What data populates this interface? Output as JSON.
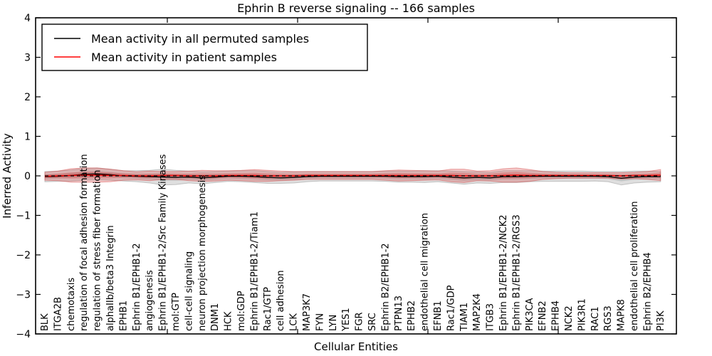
{
  "title": "Ephrin B reverse signaling -- 166 samples",
  "axes": {
    "x_label": "Cellular Entities",
    "y_label": "Inferred Activity",
    "y_tick_values": [
      4,
      3,
      2,
      1,
      0,
      -1,
      -2,
      -3,
      -4
    ],
    "y_tick_labels": [
      "4",
      "3",
      "2",
      "1",
      "0",
      "−1",
      "−2",
      "−3",
      "−4"
    ],
    "ylim": [
      -4,
      4
    ]
  },
  "legend": {
    "position": "upper left",
    "items": [
      {
        "label": "Mean activity in all permuted samples",
        "color": "#000000"
      },
      {
        "label": "Mean activity in patient samples",
        "color": "#ff0000"
      }
    ]
  },
  "colors": {
    "permuted_line": "#000000",
    "patient_line": "#ff0000",
    "permuted_band": "#8a8a8a",
    "patient_band": "#d43c3c",
    "baseline": "#000000",
    "frame": "#000000"
  },
  "chart_data": {
    "type": "line",
    "title": "Ephrin B reverse signaling -- 166 samples",
    "xlabel": "Cellular Entities",
    "ylabel": "Inferred Activity",
    "ylim": [
      -4,
      4
    ],
    "grid": false,
    "legend_position": "upper left",
    "baseline": {
      "y": 0,
      "style": "dashed",
      "color": "#000000"
    },
    "categories": [
      "BLK",
      "ITGA2B",
      "chemotaxis",
      "regulation of focal adhesion formation",
      "regulation of stress fiber formation",
      "alphaIIb/beta3 Integrin",
      "EPHB1",
      "Ephrin B1/EPHB1-2",
      "angiogenesis",
      "Ephrin B1/EPHB1-2/Src Family Kinases",
      "mol:GTP",
      "cell-cell signaling",
      "neuron projection morphogenesis",
      "DNM1",
      "HCK",
      "mol:GDP",
      "Ephrin B1/EPHB1-2/Tiam1",
      "Rac1/GTP",
      "cell adhesion",
      "LCK",
      "MAP3K7",
      "FYN",
      "LYN",
      "YES1",
      "FGR",
      "SRC",
      "Ephrin B2/EPHB1-2",
      "PTPN13",
      "EPHB2",
      "endothelial cell migration",
      "EFNB1",
      "Rac1/GDP",
      "TIAM1",
      "MAP2K4",
      "ITGB3",
      "Ephrin B1/EPHB1-2/NCK2",
      "Ephrin B1/EPHB1-2/RGS3",
      "PIK3CA",
      "EFNB2",
      "EPHB4",
      "NCK2",
      "PIK3R1",
      "RAC1",
      "RGS3",
      "MAPK8",
      "endothelial cell proliferation",
      "Ephrin B2/EPHB4",
      "PI3K"
    ],
    "series": [
      {
        "name": "Mean activity in all permuted samples",
        "color": "#000000",
        "style": "solid",
        "values": [
          -0.02,
          -0.01,
          0.01,
          0.04,
          0.05,
          0.03,
          0.0,
          -0.01,
          -0.02,
          -0.03,
          -0.04,
          -0.03,
          -0.05,
          -0.03,
          -0.01,
          -0.01,
          -0.02,
          -0.04,
          -0.05,
          -0.04,
          -0.02,
          -0.01,
          -0.01,
          -0.01,
          -0.01,
          -0.01,
          -0.01,
          -0.02,
          -0.02,
          -0.02,
          -0.01,
          -0.03,
          -0.05,
          -0.04,
          -0.05,
          -0.02,
          -0.02,
          -0.01,
          -0.01,
          -0.01,
          -0.01,
          -0.01,
          -0.01,
          -0.02,
          -0.06,
          -0.03,
          -0.02,
          -0.02
        ],
        "band_half_widths": [
          0.13,
          0.13,
          0.14,
          0.15,
          0.15,
          0.14,
          0.13,
          0.14,
          0.16,
          0.2,
          0.18,
          0.15,
          0.15,
          0.14,
          0.13,
          0.14,
          0.15,
          0.15,
          0.14,
          0.14,
          0.13,
          0.12,
          0.12,
          0.12,
          0.12,
          0.12,
          0.13,
          0.14,
          0.14,
          0.15,
          0.14,
          0.15,
          0.16,
          0.14,
          0.14,
          0.15,
          0.15,
          0.14,
          0.13,
          0.13,
          0.13,
          0.13,
          0.12,
          0.13,
          0.17,
          0.15,
          0.14,
          0.13
        ],
        "band_color": "#8a8a8a"
      },
      {
        "name": "Mean activity in patient samples",
        "color": "#ff0000",
        "style": "solid",
        "values": [
          -0.01,
          0.0,
          0.01,
          0.02,
          0.02,
          0.01,
          0.01,
          0.0,
          0.0,
          0.01,
          0.01,
          0.0,
          0.0,
          0.0,
          0.01,
          0.01,
          0.01,
          0.0,
          0.0,
          0.0,
          0.01,
          0.01,
          0.01,
          0.01,
          0.01,
          0.01,
          0.01,
          0.01,
          0.01,
          0.01,
          0.01,
          0.01,
          0.0,
          0.0,
          0.0,
          0.01,
          0.02,
          0.01,
          0.01,
          0.01,
          0.01,
          0.01,
          0.01,
          0.01,
          0.0,
          0.01,
          0.01,
          0.02
        ],
        "band_half_widths": [
          0.1,
          0.12,
          0.17,
          0.18,
          0.18,
          0.16,
          0.12,
          0.1,
          0.12,
          0.1,
          0.1,
          0.12,
          0.14,
          0.13,
          0.12,
          0.13,
          0.15,
          0.14,
          0.12,
          0.11,
          0.1,
          0.1,
          0.1,
          0.1,
          0.1,
          0.1,
          0.12,
          0.14,
          0.13,
          0.12,
          0.11,
          0.16,
          0.17,
          0.12,
          0.13,
          0.17,
          0.18,
          0.15,
          0.1,
          0.08,
          0.07,
          0.07,
          0.07,
          0.07,
          0.08,
          0.08,
          0.1,
          0.14
        ],
        "band_color": "#d43c3c"
      }
    ]
  }
}
